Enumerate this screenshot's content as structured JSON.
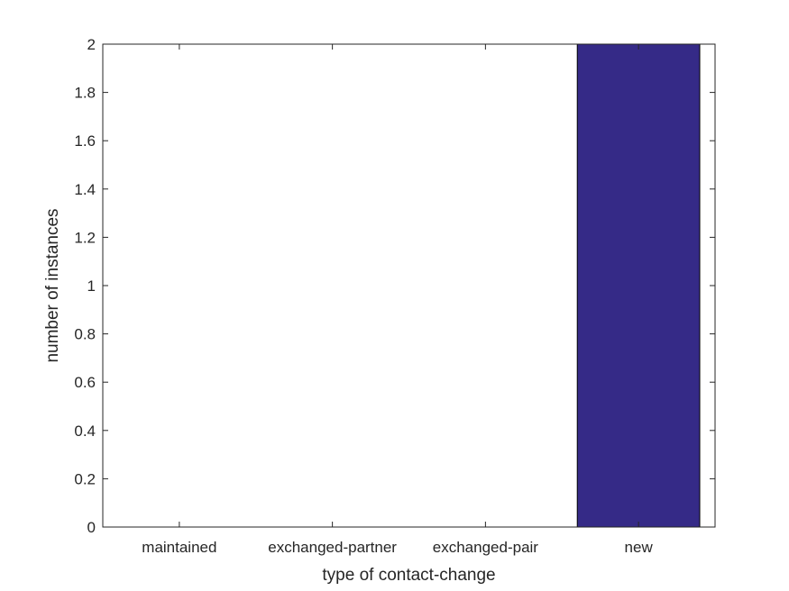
{
  "chart_data": {
    "type": "bar",
    "categories": [
      "maintained",
      "exchanged-partner",
      "exchanged-pair",
      "new"
    ],
    "values": [
      0,
      0,
      0,
      2
    ],
    "title": "",
    "xlabel": "type of contact-change",
    "ylabel": "number of instances",
    "ylim": [
      0,
      2
    ],
    "yticks": [
      "0",
      "0.2",
      "0.4",
      "0.6",
      "0.8",
      "1",
      "1.2",
      "1.4",
      "1.6",
      "1.8",
      "2"
    ],
    "grid": false,
    "bar_color": "#352a87"
  }
}
